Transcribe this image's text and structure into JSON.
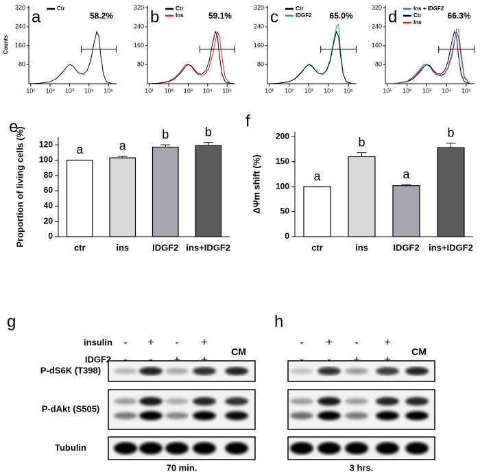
{
  "chart_data": [
    {
      "type": "line",
      "panel": "a",
      "ylabel": "Counts",
      "log_x": true,
      "x": [
        10,
        30,
        100,
        200,
        400,
        700,
        1000,
        1500,
        2000,
        3000,
        5000,
        8000,
        12000,
        18000,
        25000,
        32000,
        40000,
        55000,
        80000,
        150000,
        250000
      ],
      "xlim": [
        8,
        262144
      ],
      "xticks": [
        {
          "value": 10,
          "label": "10¹"
        },
        {
          "value": 100,
          "label": "10²"
        },
        {
          "value": 1000,
          "label": "10³"
        },
        {
          "value": 10000,
          "label": "10⁴"
        },
        {
          "value": 100000,
          "label": "10⁵"
        }
      ],
      "ylim": [
        0,
        330
      ],
      "yticks": [
        80,
        160,
        240,
        320
      ],
      "gate": [
        4000,
        250000
      ],
      "gate_y": 145,
      "annotation": "58.2%",
      "annotation_color": "#000000",
      "series": [
        {
          "name": "Ctr",
          "color": "#000000",
          "values": [
            0,
            2,
            8,
            20,
            45,
            70,
            82,
            75,
            60,
            45,
            40,
            55,
            95,
            170,
            220,
            200,
            120,
            40,
            8,
            1,
            0
          ]
        }
      ]
    },
    {
      "type": "line",
      "panel": "b",
      "log_x": true,
      "x": [
        10,
        30,
        100,
        200,
        400,
        700,
        1000,
        1500,
        2000,
        3000,
        5000,
        8000,
        12000,
        18000,
        25000,
        32000,
        40000,
        55000,
        80000,
        150000,
        250000
      ],
      "xlim": [
        8,
        262144
      ],
      "xticks": [
        {
          "value": 10,
          "label": "10¹"
        },
        {
          "value": 100,
          "label": "10²"
        },
        {
          "value": 1000,
          "label": "10³"
        },
        {
          "value": 10000,
          "label": "10⁴"
        },
        {
          "value": 100000,
          "label": "10⁵"
        }
      ],
      "ylim": [
        0,
        330
      ],
      "yticks": [
        80,
        160,
        240,
        320
      ],
      "gate": [
        4000,
        250000
      ],
      "gate_y": 145,
      "annotation": "59.1%",
      "annotation_color": "#e8141c",
      "series": [
        {
          "name": "Ctr",
          "color": "#000000",
          "values": [
            0,
            2,
            8,
            20,
            45,
            70,
            82,
            75,
            60,
            45,
            40,
            55,
            95,
            170,
            220,
            200,
            120,
            40,
            8,
            1,
            0
          ]
        },
        {
          "name": "Ins",
          "color": "#e8141c",
          "values": [
            0,
            2,
            10,
            25,
            50,
            78,
            82,
            72,
            55,
            40,
            35,
            42,
            70,
            120,
            180,
            220,
            200,
            110,
            25,
            2,
            0
          ]
        }
      ]
    },
    {
      "type": "line",
      "panel": "c",
      "log_x": true,
      "x": [
        10,
        30,
        100,
        200,
        400,
        700,
        1000,
        1500,
        2000,
        3000,
        5000,
        8000,
        12000,
        18000,
        25000,
        32000,
        40000,
        55000,
        80000,
        150000,
        250000
      ],
      "xlim": [
        8,
        262144
      ],
      "xticks": [
        {
          "value": 10,
          "label": "10¹"
        },
        {
          "value": 100,
          "label": "10²"
        },
        {
          "value": 1000,
          "label": "10³"
        },
        {
          "value": 10000,
          "label": "10⁴"
        },
        {
          "value": 100000,
          "label": "10⁵"
        }
      ],
      "ylim": [
        0,
        330
      ],
      "yticks": [
        80,
        160,
        240,
        320
      ],
      "gate": [
        4000,
        250000
      ],
      "gate_y": 145,
      "annotation": "65.0%",
      "annotation_color": "#1fa84a",
      "series": [
        {
          "name": "Ctr",
          "color": "#000000",
          "values": [
            0,
            2,
            8,
            20,
            45,
            70,
            82,
            75,
            60,
            45,
            40,
            55,
            95,
            170,
            220,
            200,
            120,
            40,
            8,
            1,
            0
          ]
        },
        {
          "name": "IDGF2",
          "color": "#1fa84a",
          "values": [
            0,
            2,
            9,
            22,
            48,
            72,
            80,
            72,
            58,
            44,
            40,
            58,
            100,
            180,
            240,
            250,
            140,
            40,
            8,
            1,
            0
          ]
        }
      ]
    },
    {
      "type": "line",
      "panel": "d",
      "log_x": true,
      "x": [
        10,
        30,
        100,
        200,
        400,
        700,
        1000,
        1500,
        2000,
        3000,
        5000,
        8000,
        12000,
        18000,
        25000,
        32000,
        40000,
        55000,
        80000,
        150000,
        250000
      ],
      "xlim": [
        8,
        262144
      ],
      "xticks": [
        {
          "value": 10,
          "label": "10¹"
        },
        {
          "value": 100,
          "label": "10²"
        },
        {
          "value": 1000,
          "label": "10³"
        },
        {
          "value": 10000,
          "label": "10⁴"
        },
        {
          "value": 100000,
          "label": "10⁵"
        }
      ],
      "ylim": [
        0,
        330
      ],
      "yticks": [
        80,
        160,
        240,
        320
      ],
      "gate": [
        4000,
        250000
      ],
      "gate_y": 145,
      "annotation": "66.3%",
      "annotation_color": "#2a7fc1",
      "series": [
        {
          "name": "Ins + IDGF2",
          "color": "#2a7fc1",
          "values": [
            0,
            2,
            10,
            28,
            55,
            80,
            80,
            70,
            52,
            38,
            32,
            40,
            65,
            110,
            170,
            230,
            230,
            130,
            30,
            2,
            0
          ]
        },
        {
          "name": "Ctr",
          "color": "#000000",
          "values": [
            0,
            2,
            8,
            20,
            45,
            70,
            82,
            75,
            60,
            45,
            40,
            55,
            95,
            170,
            220,
            200,
            120,
            40,
            8,
            1,
            0
          ]
        },
        {
          "name": "Ins",
          "color": "#e8141c",
          "values": [
            0,
            2,
            10,
            25,
            50,
            78,
            82,
            72,
            55,
            40,
            35,
            42,
            70,
            120,
            180,
            220,
            200,
            110,
            25,
            2,
            0
          ]
        }
      ]
    },
    {
      "type": "bar",
      "panel": "e",
      "ylabel": "Proportion of living cells (%)",
      "categories": [
        "ctr",
        "ins",
        "IDGF2",
        "ins+IDGF2"
      ],
      "values": [
        100,
        103,
        117,
        119
      ],
      "errors": [
        0,
        2,
        3,
        4
      ],
      "annotations": [
        "a",
        "a",
        "b",
        "b"
      ],
      "colors": [
        "#ffffff",
        "#d9d9d9",
        "#a7a7af",
        "#5b5b5b"
      ],
      "ylim": [
        0,
        130
      ],
      "yticks": [
        0,
        20,
        40,
        60,
        80,
        100,
        120
      ]
    },
    {
      "type": "bar",
      "panel": "f",
      "ylabel": "ΔΨm shift (%)",
      "categories": [
        "ctr",
        "ins",
        "IDGF2",
        "ins+IDGF2"
      ],
      "values": [
        100,
        160,
        102,
        178
      ],
      "errors": [
        0,
        8,
        2,
        9
      ],
      "annotations": [
        "a",
        "b",
        "a",
        "b"
      ],
      "colors": [
        "#ffffff",
        "#d9d9d9",
        "#a7a7af",
        "#5b5b5b"
      ],
      "ylim": [
        0,
        210
      ],
      "yticks": [
        0,
        50,
        100,
        150,
        200
      ]
    }
  ],
  "treatments": [
    "insulin",
    "IDGF2"
  ],
  "bands": [
    "P-dS6K (T398)",
    "P-dAkt (S505)",
    "Tubulin"
  ],
  "blots": [
    {
      "panel": "g",
      "signs": [
        [
          "-",
          "+",
          "-",
          "+"
        ],
        [
          "-",
          "-",
          "+",
          "+"
        ]
      ],
      "extra": "CM",
      "caption": "70 min."
    },
    {
      "panel": "h",
      "signs": [
        [
          "-",
          "+",
          "-",
          "+"
        ],
        [
          "-",
          "-",
          "+",
          "+"
        ]
      ],
      "extra": "CM",
      "caption": "3 hrs."
    }
  ]
}
